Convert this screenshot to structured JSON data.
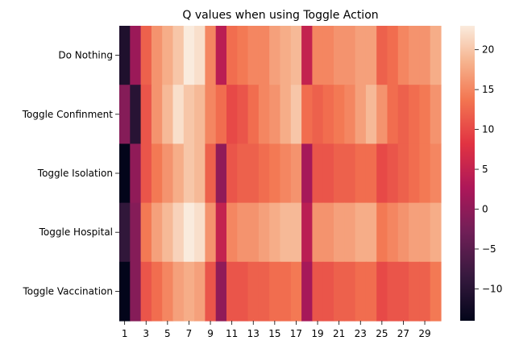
{
  "chart_data": {
    "type": "heatmap",
    "title": "Q values when using Toggle Action",
    "xlabel": "",
    "ylabel": "",
    "rows": [
      "Do Nothing",
      "Toggle Confinment",
      "Toggle Isolation",
      "Toggle Hospital",
      "Toggle Vaccination"
    ],
    "columns": [
      1,
      2,
      3,
      4,
      5,
      6,
      7,
      8,
      9,
      10,
      11,
      12,
      13,
      14,
      15,
      16,
      17,
      18,
      19,
      20,
      21,
      22,
      23,
      24,
      25,
      26,
      27,
      28,
      29,
      30
    ],
    "x_tick_labels": [
      "1",
      "3",
      "5",
      "7",
      "9",
      "11",
      "13",
      "15",
      "17",
      "19",
      "21",
      "23",
      "25",
      "27",
      "29"
    ],
    "values": [
      [
        -11,
        1,
        12,
        16,
        18,
        20,
        23,
        22,
        15,
        4,
        13,
        14,
        15,
        15,
        17,
        18,
        19,
        5,
        15,
        15,
        16,
        16,
        17,
        17,
        12,
        13,
        15,
        16,
        16,
        18
      ],
      [
        -1,
        -10,
        11,
        16,
        19,
        22,
        20,
        19,
        15,
        13,
        10,
        11,
        13,
        15,
        16,
        18,
        20,
        13,
        12,
        13,
        14,
        15,
        17,
        19,
        16,
        13,
        12,
        13,
        14,
        16
      ],
      [
        -14,
        0,
        11,
        14,
        16,
        18,
        20,
        19,
        12,
        0,
        11,
        12,
        12,
        13,
        14,
        15,
        16,
        2,
        11,
        11,
        12,
        12,
        13,
        13,
        10,
        11,
        12,
        13,
        14,
        15
      ],
      [
        -9,
        -1,
        14,
        17,
        19,
        21,
        23,
        22,
        16,
        5,
        15,
        16,
        16,
        17,
        18,
        19,
        19,
        4,
        16,
        16,
        17,
        17,
        18,
        18,
        14,
        15,
        16,
        17,
        17,
        18
      ],
      [
        -14,
        -1,
        11,
        13,
        15,
        17,
        18,
        17,
        11,
        0,
        11,
        11,
        12,
        12,
        13,
        13,
        14,
        2,
        11,
        11,
        12,
        12,
        13,
        13,
        10,
        11,
        11,
        12,
        12,
        14
      ]
    ],
    "colorbar": {
      "min": -14,
      "max": 23,
      "ticks": [
        -10,
        -5,
        0,
        5,
        10,
        15,
        20
      ],
      "colormap": "rocket"
    }
  }
}
